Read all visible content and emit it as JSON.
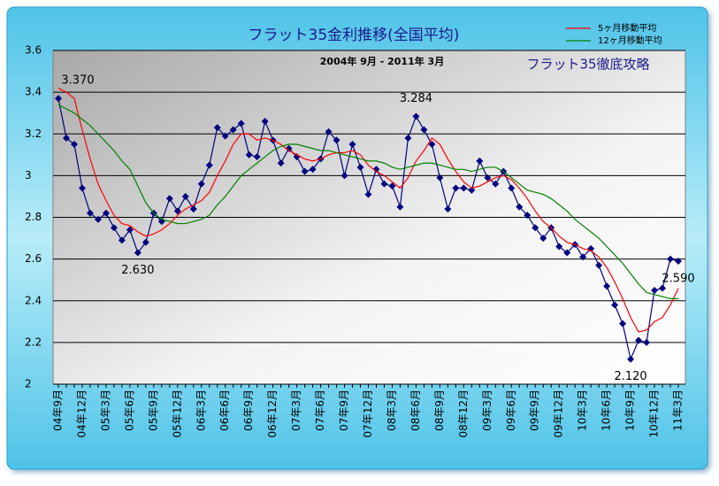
{
  "chart_data": {
    "type": "line",
    "title": "フラット35金利推移(全国平均)",
    "subtitle": "2004年 9月 - 2011年 3月",
    "annotation": "フラット35徹底攻略",
    "categories": [
      "04年9月",
      null,
      null,
      "04年12月",
      null,
      null,
      "05年3月",
      null,
      null,
      "05年6月",
      null,
      null,
      "05年9月",
      null,
      null,
      "05年12月",
      null,
      null,
      "06年3月",
      null,
      null,
      "06年6月",
      null,
      null,
      "06年9月",
      null,
      null,
      "06年12月",
      null,
      null,
      "07年3月",
      null,
      null,
      "07年6月",
      null,
      null,
      "07年9月",
      null,
      null,
      "07年12月",
      null,
      null,
      "08年3月",
      null,
      null,
      "08年6月",
      null,
      null,
      "08年9月",
      null,
      null,
      "08年12月",
      null,
      null,
      "09年3月",
      null,
      null,
      "09年6月",
      null,
      null,
      "09年9月",
      null,
      null,
      "09年12月",
      null,
      null,
      "10年3月",
      null,
      null,
      "10年6月",
      null,
      null,
      "10年9月",
      null,
      null,
      "10年12月",
      null,
      null,
      "11年3月"
    ],
    "series": [
      {
        "color": "#000080",
        "values": [
          3.37,
          3.18,
          3.15,
          2.94,
          2.82,
          2.79,
          2.82,
          2.75,
          2.69,
          2.74,
          2.63,
          2.68,
          2.82,
          2.78,
          2.89,
          2.83,
          2.9,
          2.84,
          2.96,
          3.05,
          3.23,
          3.19,
          3.22,
          3.25,
          3.1,
          3.09,
          3.26,
          3.17,
          3.06,
          3.13,
          3.09,
          3.02,
          3.03,
          3.08,
          3.21,
          3.17,
          3.0,
          3.15,
          3.04,
          2.91,
          3.03,
          2.96,
          2.95,
          2.85,
          3.18,
          3.284,
          3.22,
          3.15,
          2.99,
          2.84,
          2.94,
          2.94,
          2.93,
          3.07,
          2.99,
          2.96,
          3.02,
          2.94,
          2.85,
          2.81,
          2.75,
          2.7,
          2.75,
          2.66,
          2.63,
          2.67,
          2.61,
          2.65,
          2.57,
          2.47,
          2.38,
          2.29,
          2.12,
          2.21,
          2.2,
          2.45,
          2.46,
          2.6,
          2.59
        ],
        "value_labels": [
          "3.370",
          null,
          null,
          null,
          null,
          null,
          null,
          null,
          null,
          null,
          "2.630",
          null,
          null,
          null,
          null,
          null,
          null,
          null,
          null,
          null,
          null,
          null,
          null,
          null,
          null,
          null,
          null,
          null,
          null,
          null,
          null,
          null,
          null,
          null,
          null,
          null,
          null,
          null,
          null,
          null,
          null,
          null,
          null,
          null,
          null,
          "3.284",
          null,
          null,
          null,
          null,
          null,
          null,
          null,
          null,
          null,
          null,
          null,
          null,
          null,
          null,
          null,
          null,
          null,
          null,
          null,
          null,
          null,
          null,
          null,
          null,
          null,
          null,
          "2.120",
          null,
          null,
          null,
          null,
          null,
          "2.590"
        ]
      },
      {
        "name": "5ヶ月移動平均",
        "color": "#ff0000",
        "values": [
          3.42,
          3.4,
          3.37,
          3.22,
          3.08,
          2.96,
          2.88,
          2.81,
          2.77,
          2.76,
          2.73,
          2.71,
          2.72,
          2.74,
          2.77,
          2.81,
          2.84,
          2.86,
          2.88,
          2.92,
          3.0,
          3.07,
          3.15,
          3.2,
          3.2,
          3.17,
          3.18,
          3.17,
          3.15,
          3.12,
          3.1,
          3.08,
          3.07,
          3.08,
          3.1,
          3.11,
          3.11,
          3.12,
          3.1,
          3.05,
          3.02,
          3.0,
          2.97,
          2.94,
          2.99,
          3.07,
          3.12,
          3.18,
          3.15,
          3.08,
          3.02,
          2.97,
          2.94,
          2.95,
          2.97,
          2.99,
          3.0,
          2.98,
          2.94,
          2.89,
          2.83,
          2.78,
          2.75,
          2.71,
          2.68,
          2.67,
          2.65,
          2.64,
          2.61,
          2.56,
          2.49,
          2.41,
          2.32,
          2.25,
          2.26,
          2.3,
          2.32,
          2.38,
          2.46
        ]
      },
      {
        "name": "12ヶ月移動平均",
        "color": "#008000",
        "values": [
          3.34,
          3.32,
          3.3,
          3.27,
          3.24,
          3.2,
          3.16,
          3.12,
          3.07,
          3.03,
          2.95,
          2.87,
          2.82,
          2.79,
          2.78,
          2.77,
          2.77,
          2.78,
          2.79,
          2.81,
          2.86,
          2.9,
          2.95,
          3.0,
          3.03,
          3.06,
          3.09,
          3.12,
          3.14,
          3.15,
          3.15,
          3.14,
          3.13,
          3.12,
          3.12,
          3.11,
          3.1,
          3.09,
          3.08,
          3.07,
          3.07,
          3.06,
          3.04,
          3.03,
          3.04,
          3.05,
          3.06,
          3.06,
          3.05,
          3.04,
          3.03,
          3.03,
          3.02,
          3.03,
          3.04,
          3.04,
          3.02,
          2.99,
          2.96,
          2.93,
          2.92,
          2.91,
          2.89,
          2.86,
          2.83,
          2.79,
          2.76,
          2.73,
          2.7,
          2.66,
          2.62,
          2.58,
          2.53,
          2.48,
          2.44,
          2.43,
          2.42,
          2.41,
          2.41
        ]
      }
    ],
    "ylim": [
      2,
      3.6
    ],
    "yticks": [
      2,
      2.2,
      2.4,
      2.6,
      2.8,
      3,
      3.2,
      3.4,
      3.6
    ],
    "grid": true
  }
}
